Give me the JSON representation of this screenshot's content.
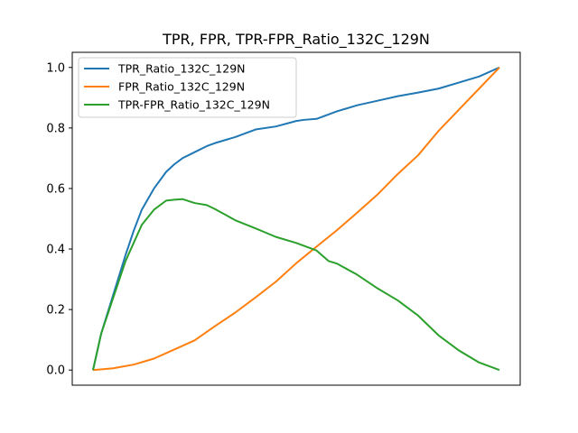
{
  "chart_data": {
    "type": "line",
    "title": "TPR, FPR, TPR-FPR_Ratio_132C_129N",
    "xlabel": "",
    "ylabel": "",
    "x_ticks_visible": false,
    "xlim": [
      0,
      1
    ],
    "ylim": [
      -0.05,
      1.05
    ],
    "y_ticks": [
      "0.0",
      "0.2",
      "0.4",
      "0.6",
      "0.8",
      "1.0"
    ],
    "grid": false,
    "legend_position": "upper-left",
    "series": [
      {
        "name": "TPR_Ratio_132C_129N",
        "color": "#1f77b4",
        "x": [
          0,
          0.02,
          0.05,
          0.08,
          0.1,
          0.12,
          0.15,
          0.18,
          0.2,
          0.22,
          0.25,
          0.28,
          0.3,
          0.35,
          0.4,
          0.45,
          0.5,
          0.52,
          0.55,
          0.58,
          0.6,
          0.65,
          0.7,
          0.75,
          0.8,
          0.85,
          0.9,
          0.95,
          1.0
        ],
        "values": [
          0,
          0.12,
          0.25,
          0.38,
          0.46,
          0.53,
          0.6,
          0.655,
          0.68,
          0.7,
          0.72,
          0.74,
          0.75,
          0.77,
          0.795,
          0.805,
          0.823,
          0.827,
          0.83,
          0.845,
          0.855,
          0.875,
          0.89,
          0.905,
          0.917,
          0.93,
          0.95,
          0.97,
          1.0
        ]
      },
      {
        "name": "FPR_Ratio_132C_129N",
        "color": "#ff7f0e",
        "x": [
          0,
          0.05,
          0.1,
          0.15,
          0.2,
          0.25,
          0.3,
          0.35,
          0.4,
          0.45,
          0.5,
          0.55,
          0.6,
          0.65,
          0.7,
          0.75,
          0.8,
          0.85,
          0.9,
          0.95,
          1.0
        ],
        "values": [
          0,
          0.006,
          0.018,
          0.038,
          0.068,
          0.098,
          0.145,
          0.19,
          0.24,
          0.292,
          0.353,
          0.408,
          0.462,
          0.52,
          0.58,
          0.648,
          0.71,
          0.79,
          0.86,
          0.93,
          1.0
        ]
      },
      {
        "name": "TPR-FPR_Ratio_132C_129N",
        "color": "#2ca02c",
        "x": [
          0,
          0.02,
          0.05,
          0.08,
          0.1,
          0.12,
          0.15,
          0.18,
          0.2,
          0.22,
          0.25,
          0.28,
          0.3,
          0.33,
          0.35,
          0.4,
          0.45,
          0.5,
          0.55,
          0.58,
          0.6,
          0.65,
          0.7,
          0.75,
          0.8,
          0.85,
          0.9,
          0.95,
          1.0
        ],
        "values": [
          0,
          0.12,
          0.24,
          0.36,
          0.42,
          0.48,
          0.53,
          0.56,
          0.563,
          0.565,
          0.552,
          0.545,
          0.532,
          0.51,
          0.495,
          0.468,
          0.44,
          0.42,
          0.395,
          0.36,
          0.352,
          0.315,
          0.27,
          0.23,
          0.18,
          0.115,
          0.065,
          0.025,
          0.0
        ]
      }
    ]
  }
}
